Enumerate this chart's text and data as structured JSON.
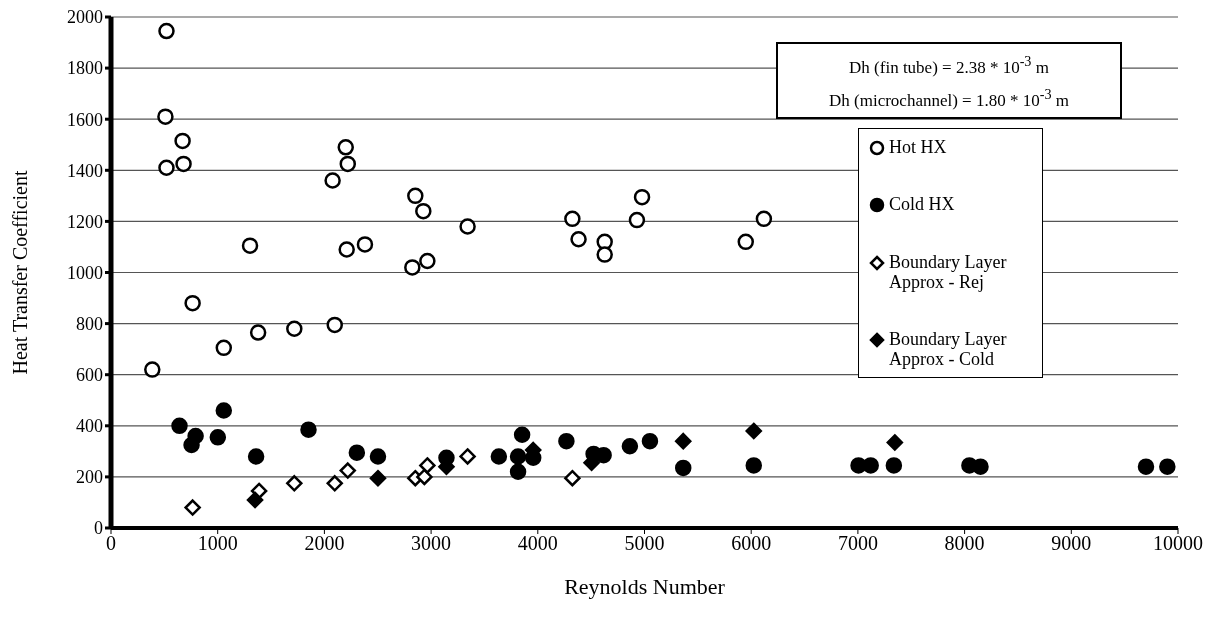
{
  "chart_data": {
    "type": "scatter",
    "xlabel": "Reynolds Number",
    "ylabel": "Heat Transfer Coefficient",
    "xlim": [
      0,
      10000
    ],
    "xticks": [
      0,
      1000,
      2000,
      3000,
      4000,
      5000,
      6000,
      7000,
      8000,
      9000,
      10000
    ],
    "ylim": [
      0,
      2000
    ],
    "yticks": [
      0,
      200,
      400,
      600,
      800,
      1000,
      1200,
      1400,
      1600,
      1800,
      2000
    ],
    "grid": "y",
    "legend": "top right",
    "annotations": [
      "Dh (fin tube) = 2.38 * 10$^{-3}$ m",
      "Dh (microchannel) = 1.80 * 10$^{-3}$ m"
    ],
    "series": [
      {
        "name": "Hot HX",
        "color": "#ffffff",
        "marker": "circle",
        "x": [
          387,
          510,
          520,
          520,
          671,
          680,
          765,
          1057,
          1303,
          1379,
          1718,
          2077,
          2097,
          2200,
          2209,
          2219,
          2380,
          2824,
          2852,
          2927,
          2965,
          3342,
          4324,
          4382,
          4627,
          4627,
          4929,
          4977,
          5949,
          6119
        ],
        "values": [
          620,
          1610,
          1945,
          1410,
          1515,
          1425,
          880,
          705,
          1105,
          765,
          780,
          1360,
          795,
          1490,
          1090,
          1425,
          1110,
          1020,
          1300,
          1240,
          1045,
          1180,
          1210,
          1130,
          1120,
          1070,
          1205,
          1295,
          1120,
          1210
        ]
      },
      {
        "name": "Cold HX",
        "color": "#000000",
        "marker": "circle",
        "x": [
          642,
          793,
          755,
          1057,
          1001,
          1360,
          1851,
          2304,
          2502,
          3144,
          3635,
          3853,
          3815,
          3815,
          3957,
          4268,
          4523,
          4617,
          4863,
          5051,
          5363,
          6024,
          7006,
          7120,
          7337,
          8045,
          8149,
          9700,
          9900
        ],
        "values": [
          400,
          360,
          325,
          460,
          355,
          280,
          385,
          295,
          280,
          275,
          280,
          365,
          280,
          220,
          275,
          340,
          290,
          285,
          320,
          340,
          235,
          245,
          245,
          245,
          245,
          245,
          240,
          240,
          240
        ]
      },
      {
        "name": "Boundary Layer Approx - Rej",
        "color": "#ffffff",
        "marker": "diamond",
        "x": [
          765,
          1388,
          1718,
          2097,
          2219,
          2852,
          2937,
          2965,
          3342,
          4324
        ],
        "values": [
          80,
          145,
          175,
          175,
          225,
          195,
          200,
          245,
          280,
          195
        ]
      },
      {
        "name": "Boundary Layer Approx - Cold",
        "color": "#000000",
        "marker": "diamond",
        "x": [
          1350,
          2502,
          3144,
          3957,
          4504,
          5363,
          6024,
          7346
        ],
        "values": [
          110,
          195,
          240,
          305,
          255,
          340,
          380,
          335
        ]
      }
    ]
  }
}
